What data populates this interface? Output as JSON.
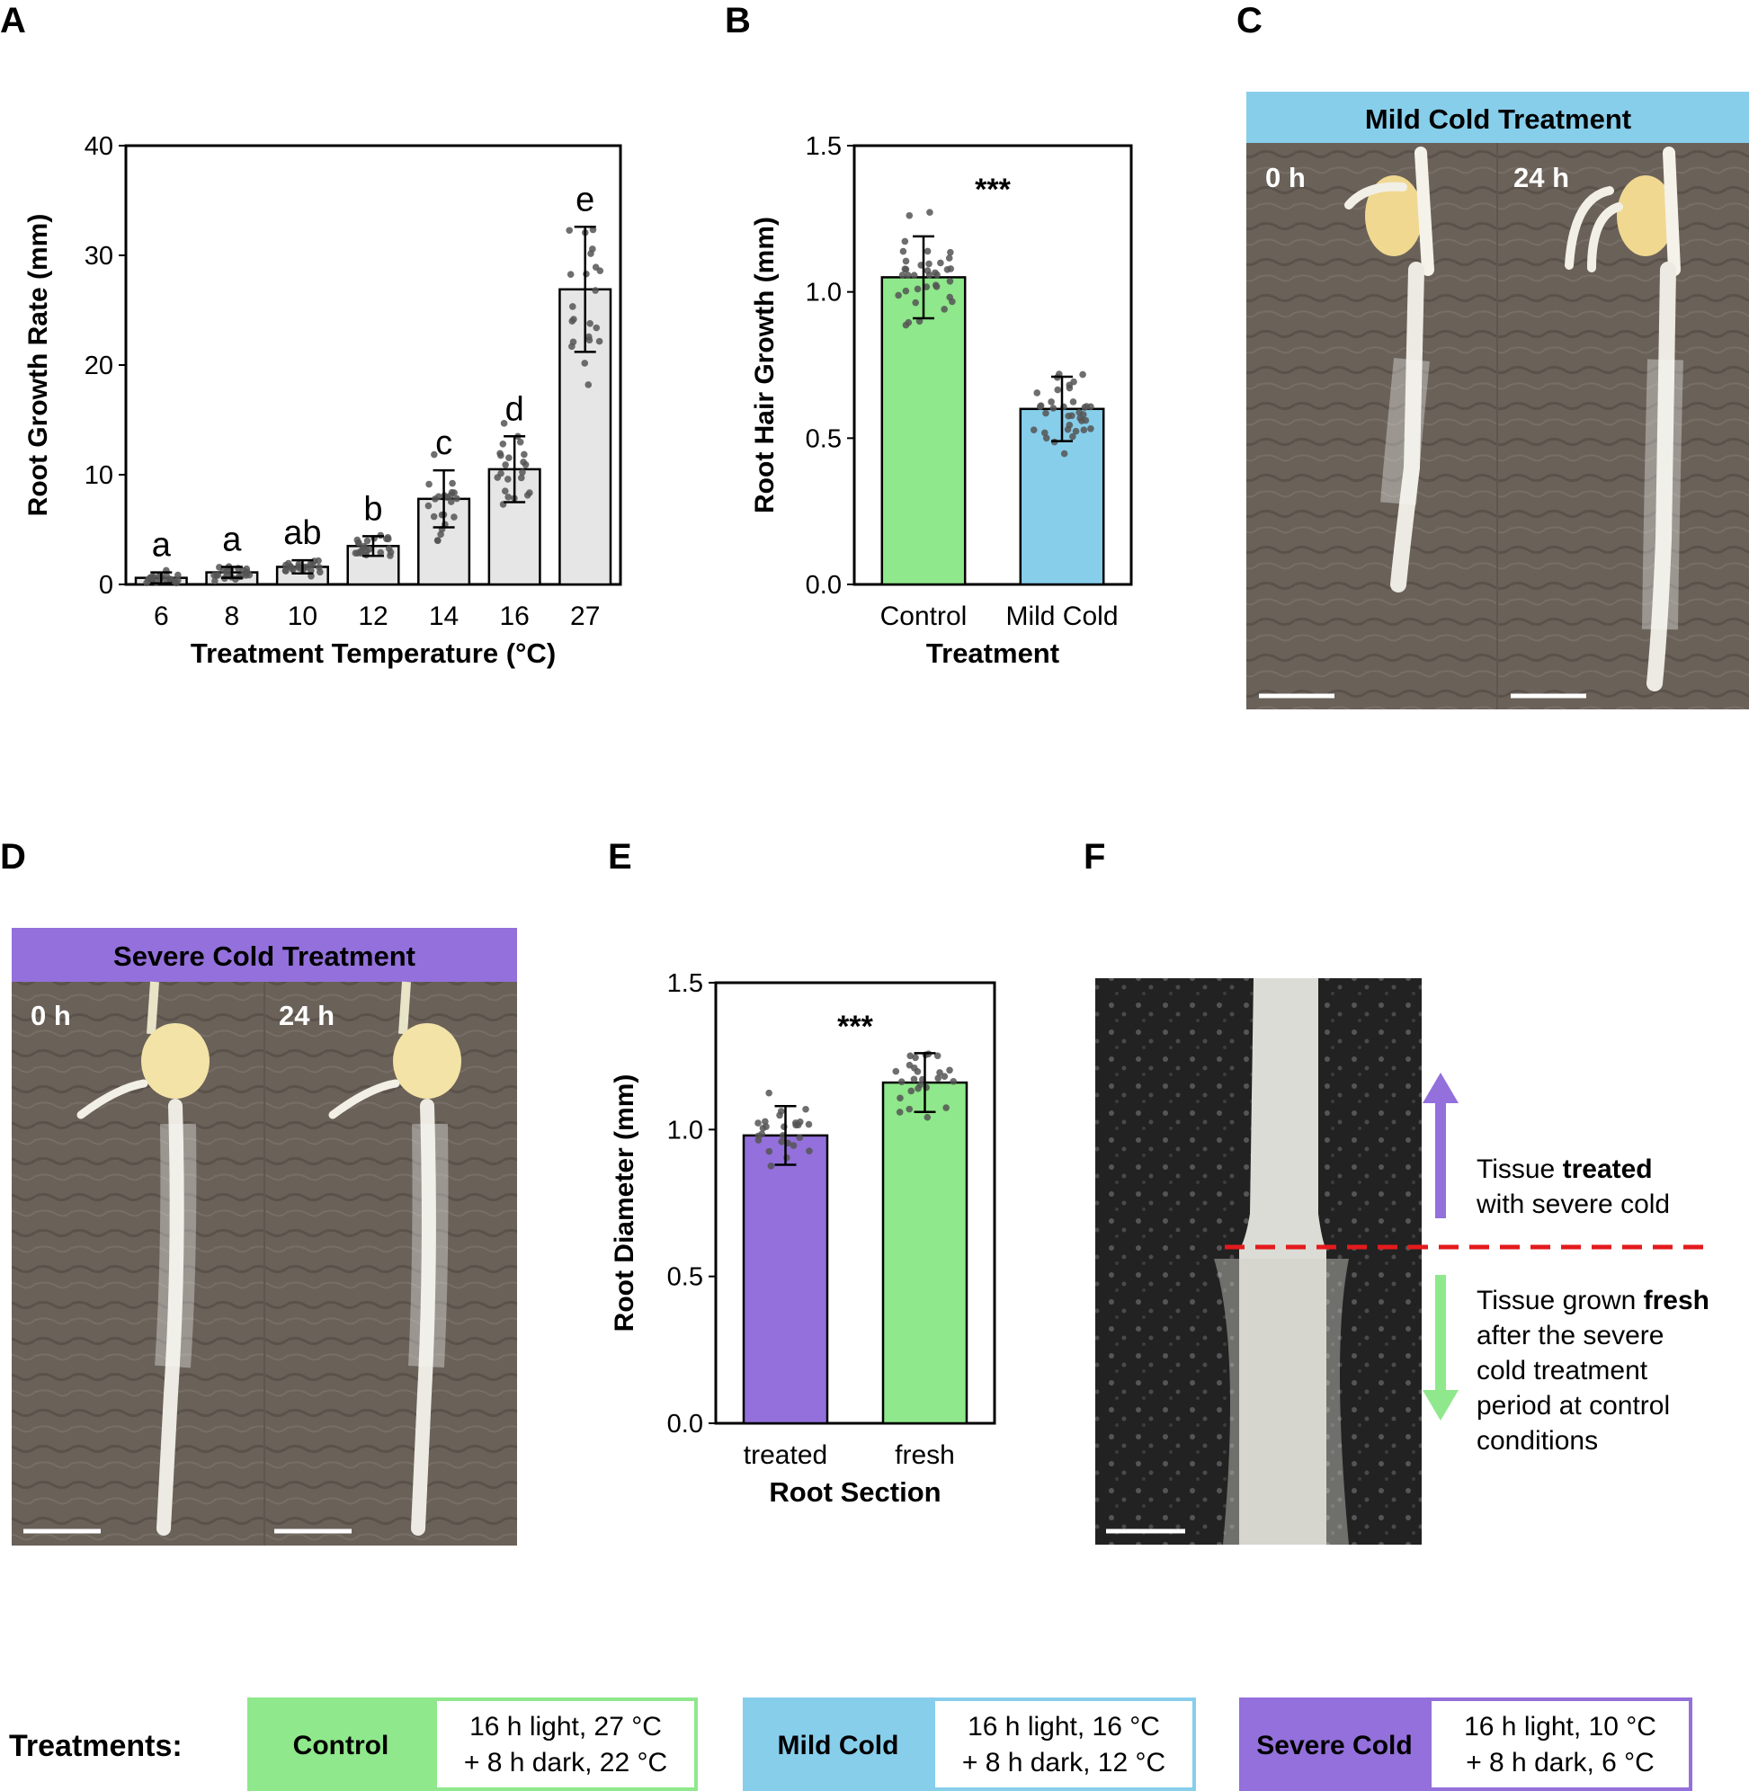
{
  "panels": {
    "A": {
      "letter": "A"
    },
    "B": {
      "letter": "B"
    },
    "C": {
      "letter": "C",
      "header": "Mild Cold Treatment",
      "t0": "0 h",
      "t24": "24 h"
    },
    "D": {
      "letter": "D",
      "header": "Severe Cold Treatment",
      "t0": "0 h",
      "t24": "24 h"
    },
    "E": {
      "letter": "E"
    },
    "F": {
      "letter": "F",
      "up_pre": "Tissue ",
      "up_bold": "treated",
      "up_line2": "with severe cold",
      "down_pre": "Tissue grown ",
      "down_bold": "fresh",
      "down_lines": [
        "after the severe",
        "cold treatment",
        "period at control",
        "conditions"
      ]
    }
  },
  "colors": {
    "control": "#8fe88b",
    "mild": "#87ceeb",
    "severe": "#9370db",
    "gray_bar": "#e6e6e6",
    "red_dash": "#e31a1c",
    "photo_bg": "#6b625a",
    "dark_photo": "#2a2a2a"
  },
  "chart_data": [
    {
      "panel": "A",
      "type": "bar",
      "categories": [
        "6",
        "8",
        "10",
        "12",
        "14",
        "16",
        "27"
      ],
      "values": [
        0.6,
        1.1,
        1.6,
        3.5,
        7.8,
        10.5,
        26.9
      ],
      "error": [
        0.5,
        0.5,
        0.6,
        0.9,
        2.6,
        3.0,
        5.7
      ],
      "letters": [
        "a",
        "a",
        "ab",
        "b",
        "c",
        "d",
        "e"
      ],
      "xlabel": "Treatment Temperature (°C)",
      "ylabel": "Root Growth Rate (mm)",
      "ylim": [
        0,
        40
      ],
      "yticks": [
        "0",
        "10",
        "20",
        "30",
        "40"
      ],
      "grid": false
    },
    {
      "panel": "B",
      "type": "bar",
      "categories": [
        "Control",
        "Mild Cold"
      ],
      "values": [
        1.05,
        0.6
      ],
      "error": [
        0.14,
        0.11
      ],
      "significance": "***",
      "xlabel": "Treatment",
      "ylabel": "Root Hair Growth (mm)",
      "ylim": [
        0,
        1.5
      ],
      "yticks": [
        "0.0",
        "0.5",
        "1.0",
        "1.5"
      ],
      "grid": false
    },
    {
      "panel": "E",
      "type": "bar",
      "categories": [
        "treated",
        "fresh"
      ],
      "values": [
        0.98,
        1.16
      ],
      "error": [
        0.1,
        0.1
      ],
      "significance": "***",
      "xlabel": "Root Section",
      "ylabel": "Root Diameter (mm)",
      "ylim": [
        0,
        1.5
      ],
      "yticks": [
        "0.0",
        "0.5",
        "1.0",
        "1.5"
      ],
      "grid": false
    }
  ],
  "treatments": {
    "label": "Treatments:",
    "items": [
      {
        "name": "Control",
        "line1": "16 h light, 27 °C",
        "line2": "+ 8 h dark, 22 °C"
      },
      {
        "name": "Mild Cold",
        "line1": "16 h light, 16 °C",
        "line2": "+ 8 h dark, 12 °C"
      },
      {
        "name": "Severe Cold",
        "line1": "16 h light, 10 °C",
        "line2": "+ 8 h dark, 6 °C"
      }
    ]
  }
}
